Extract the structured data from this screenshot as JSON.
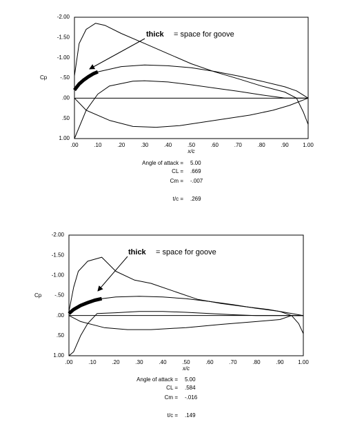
{
  "chart_data": [
    {
      "type": "line",
      "ylabel": "Cp",
      "xlabel": "x/c",
      "y_inverted": true,
      "zero_line": true,
      "xlim": [
        0,
        1
      ],
      "ylim": [
        -2,
        1
      ],
      "xticks": [
        {
          "value": 0,
          "label": ".00"
        },
        {
          "value": 0.1,
          "label": ".10"
        },
        {
          "value": 0.2,
          "label": ".20"
        },
        {
          "value": 0.3,
          "label": ".30"
        },
        {
          "value": 0.4,
          "label": ".40"
        },
        {
          "value": 0.5,
          "label": ".50"
        },
        {
          "value": 0.6,
          "label": ".60"
        },
        {
          "value": 0.7,
          "label": ".70"
        },
        {
          "value": 0.8,
          "label": ".80"
        },
        {
          "value": 0.9,
          "label": ".90"
        },
        {
          "value": 1,
          "label": "1.00"
        }
      ],
      "yticks": [
        {
          "value": -2,
          "label": "-2.00"
        },
        {
          "value": -1.5,
          "label": "-1.50"
        },
        {
          "value": -1,
          "label": "-1.00"
        },
        {
          "value": -0.5,
          "label": "-.50"
        },
        {
          "value": 0,
          "label": ".00"
        },
        {
          "value": 0.5,
          "label": ".50"
        },
        {
          "value": 1,
          "label": "1.00"
        }
      ],
      "annotation": {
        "bold": "thick",
        "text": "= space for goove"
      },
      "series": [
        {
          "color": "#000000",
          "width": 1,
          "x": [
            0,
            0.02,
            0.05,
            0.09,
            0.13,
            0.2,
            0.3,
            0.4,
            0.5,
            0.6,
            0.7,
            0.8,
            0.9,
            0.95,
            0.98,
            1.0
          ],
          "values": [
            -0.55,
            -1.35,
            -1.7,
            -1.85,
            -1.8,
            -1.6,
            -1.35,
            -1.1,
            -0.85,
            -0.65,
            -0.48,
            -0.3,
            -0.15,
            0.0,
            0.35,
            0.65
          ]
        },
        {
          "color": "#000000",
          "width": 5,
          "x": [
            0,
            0.02,
            0.04,
            0.06,
            0.08,
            0.1
          ],
          "values": [
            -0.2,
            -0.35,
            -0.45,
            -0.53,
            -0.6,
            -0.65
          ]
        },
        {
          "color": "#000000",
          "width": 1,
          "x": [
            0.1,
            0.2,
            0.3,
            0.4,
            0.5,
            0.6,
            0.7,
            0.8,
            0.9,
            0.95,
            1.0
          ],
          "values": [
            -0.65,
            -0.78,
            -0.82,
            -0.8,
            -0.75,
            -0.66,
            -0.55,
            -0.42,
            -0.28,
            -0.18,
            0.0
          ]
        },
        {
          "color": "#000000",
          "width": 1,
          "x": [
            0,
            0.05,
            0.1,
            0.15,
            0.25,
            0.3,
            0.4,
            0.5,
            0.6,
            0.7,
            0.8,
            0.9,
            1.0
          ],
          "values": [
            1.0,
            0.3,
            -0.1,
            -0.3,
            -0.42,
            -0.43,
            -0.4,
            -0.33,
            -0.25,
            -0.17,
            -0.08,
            0.0,
            0.0
          ]
        },
        {
          "color": "#000000",
          "width": 1,
          "x": [
            0,
            0.05,
            0.15,
            0.25,
            0.35,
            0.45,
            0.6,
            0.75,
            0.85,
            0.92,
            1.0
          ],
          "values": [
            0.0,
            0.3,
            0.55,
            0.7,
            0.72,
            0.68,
            0.55,
            0.42,
            0.3,
            0.18,
            0.0
          ]
        }
      ],
      "info": [
        {
          "label": "Angle of attack =",
          "value": "5.00"
        },
        {
          "label": "CL =",
          "value": ".669"
        },
        {
          "label": "Cm =",
          "value": "-.007"
        },
        {
          "label": "t/c =",
          "value": ".269"
        }
      ]
    },
    {
      "type": "line",
      "ylabel": "Cp",
      "xlabel": "x/c",
      "y_inverted": true,
      "zero_line": true,
      "xlim": [
        0,
        1
      ],
      "ylim": [
        -2,
        1
      ],
      "xticks": [
        {
          "value": 0,
          "label": ".00"
        },
        {
          "value": 0.1,
          "label": ".10"
        },
        {
          "value": 0.2,
          "label": ".20"
        },
        {
          "value": 0.3,
          "label": ".30"
        },
        {
          "value": 0.4,
          "label": ".40"
        },
        {
          "value": 0.5,
          "label": ".50"
        },
        {
          "value": 0.6,
          "label": ".60"
        },
        {
          "value": 0.7,
          "label": ".70"
        },
        {
          "value": 0.8,
          "label": ".80"
        },
        {
          "value": 0.9,
          "label": ".90"
        },
        {
          "value": 1,
          "label": "1.00"
        }
      ],
      "yticks": [
        {
          "value": -2,
          "label": "-2.00"
        },
        {
          "value": -1.5,
          "label": "-1.50"
        },
        {
          "value": -1,
          "label": "-1.00"
        },
        {
          "value": -0.5,
          "label": "-.50"
        },
        {
          "value": 0,
          "label": ".00"
        },
        {
          "value": 0.5,
          "label": ".50"
        },
        {
          "value": 1,
          "label": "1.00"
        }
      ],
      "annotation": {
        "bold": "thick",
        "text": "= space for goove"
      },
      "series": [
        {
          "color": "#000000",
          "width": 1,
          "x": [
            0,
            0.02,
            0.04,
            0.08,
            0.14,
            0.2,
            0.28,
            0.35,
            0.45,
            0.55,
            0.65,
            0.75,
            0.85,
            0.9,
            0.95,
            0.98,
            1.0
          ],
          "values": [
            -0.1,
            -0.7,
            -1.1,
            -1.35,
            -1.45,
            -1.1,
            -0.88,
            -0.8,
            -0.6,
            -0.4,
            -0.3,
            -0.22,
            -0.15,
            -0.1,
            0.0,
            0.2,
            0.45
          ]
        },
        {
          "color": "#000000",
          "width": 5,
          "x": [
            0,
            0.02,
            0.05,
            0.08,
            0.11,
            0.14
          ],
          "values": [
            -0.05,
            -0.15,
            -0.25,
            -0.32,
            -0.38,
            -0.42
          ]
        },
        {
          "color": "#000000",
          "width": 1,
          "x": [
            0.14,
            0.2,
            0.3,
            0.4,
            0.5,
            0.6,
            0.7,
            0.8,
            0.9,
            1.0
          ],
          "values": [
            -0.42,
            -0.46,
            -0.48,
            -0.46,
            -0.42,
            -0.35,
            -0.27,
            -0.18,
            -0.1,
            0.0
          ]
        },
        {
          "color": "#000000",
          "width": 1,
          "x": [
            0,
            0.02,
            0.05,
            0.08,
            0.12,
            0.2,
            0.3,
            0.4,
            0.5,
            0.6,
            0.7,
            0.8,
            0.9,
            1.0
          ],
          "values": [
            1.0,
            0.9,
            0.5,
            0.2,
            -0.05,
            -0.07,
            -0.1,
            -0.1,
            -0.08,
            -0.05,
            -0.02,
            0.0,
            0.0,
            0.0
          ]
        },
        {
          "color": "#000000",
          "width": 1,
          "x": [
            0,
            0.05,
            0.15,
            0.25,
            0.35,
            0.5,
            0.65,
            0.8,
            0.9,
            0.95,
            1.0
          ],
          "values": [
            0.0,
            0.15,
            0.3,
            0.35,
            0.35,
            0.3,
            0.22,
            0.15,
            0.1,
            0.0,
            0.0
          ]
        }
      ],
      "info": [
        {
          "label": "Angle of attack =",
          "value": "5.00"
        },
        {
          "label": "CL =",
          "value": ".584"
        },
        {
          "label": "Cm =",
          "value": "-.016"
        },
        {
          "label": "t/c =",
          "value": ".149"
        }
      ]
    }
  ]
}
